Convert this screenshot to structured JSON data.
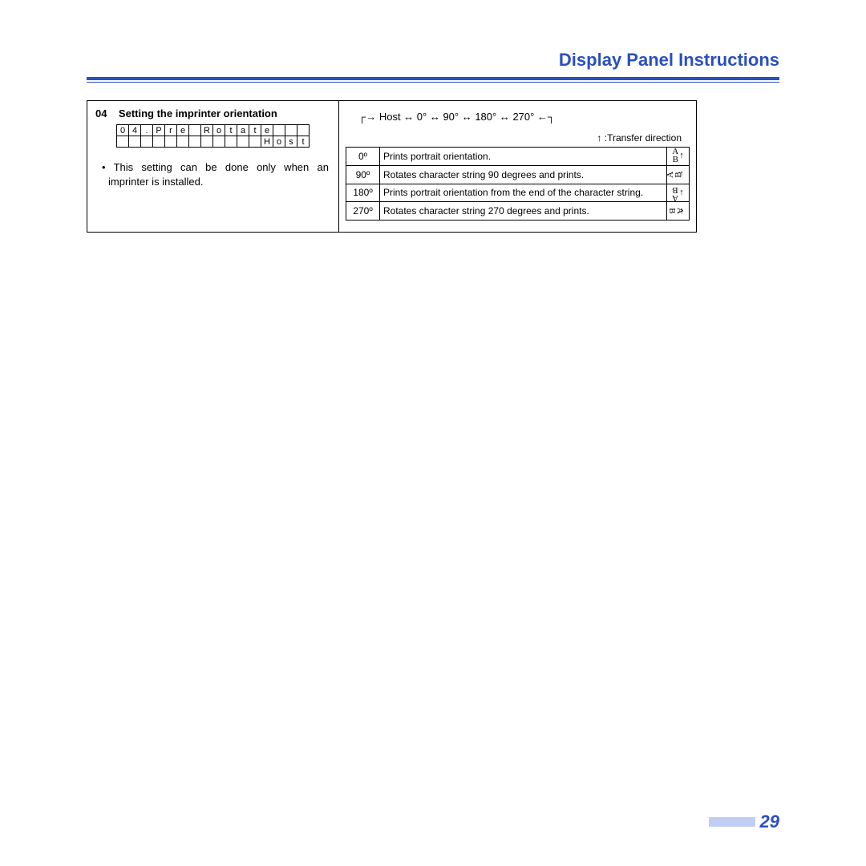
{
  "header": {
    "title": "Display Panel Instructions",
    "accent_color": "#2a4fc1"
  },
  "section": {
    "number": "04",
    "title": "Setting the imprinter orientation",
    "lcd_row1": [
      "0",
      "4",
      ".",
      "P",
      "r",
      "e",
      "",
      "R",
      "o",
      "t",
      "a",
      "t",
      "e",
      "",
      "",
      ""
    ],
    "lcd_row2": [
      "",
      "",
      "",
      "",
      "",
      "",
      "",
      "",
      "",
      "",
      "",
      "",
      "H",
      "o",
      "s",
      "t"
    ],
    "bullet": "• This setting can be done only when an imprinter is installed."
  },
  "right": {
    "sequence": "Host ↔ 0° ↔ 90° ↔ 180° ↔ 270°",
    "transfer_label": ":Transfer direction",
    "rows": [
      {
        "deg": "0º",
        "desc": "Prints portrait orientation."
      },
      {
        "deg": "90º",
        "desc": "Rotates character string 90 degrees and prints."
      },
      {
        "deg": "180º",
        "desc": "Prints portrait orientation from the end of the character string."
      },
      {
        "deg": "270º",
        "desc": "Rotates character string 270 degrees and prints."
      }
    ]
  },
  "footer": {
    "page_number": "29",
    "bar_color": "#c1cdf2"
  }
}
